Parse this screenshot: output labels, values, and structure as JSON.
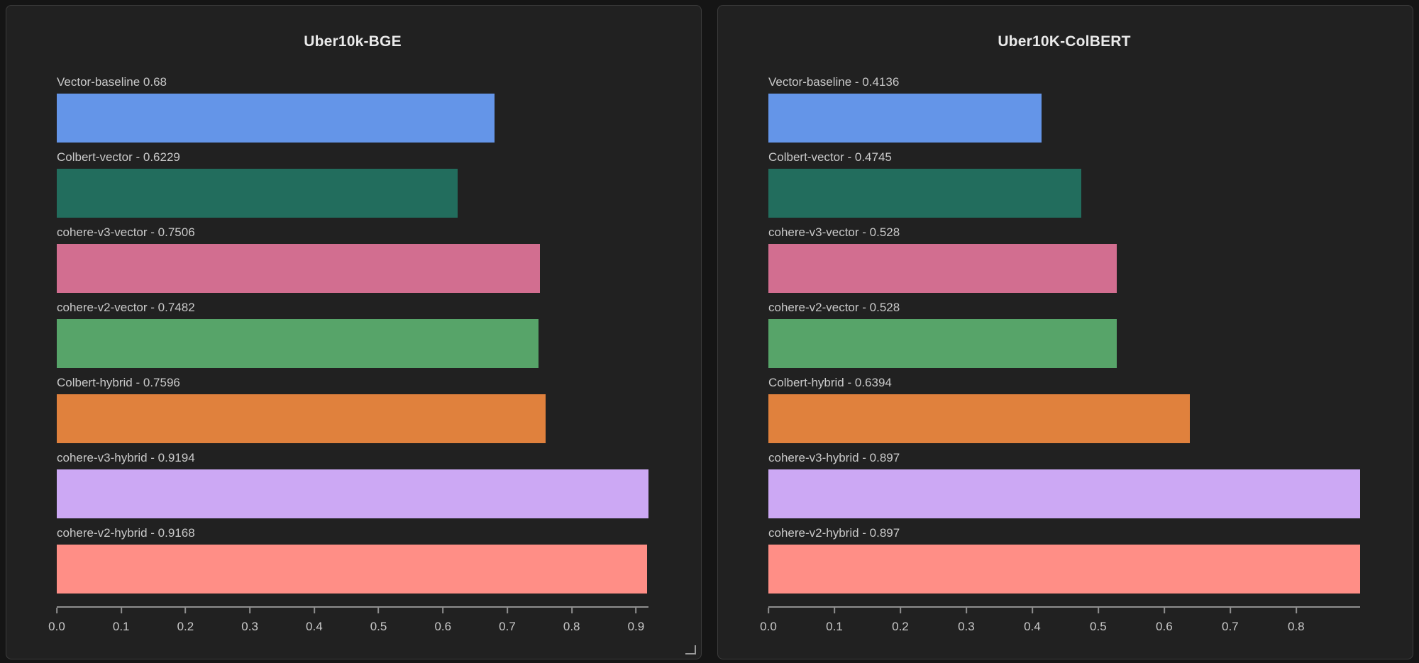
{
  "app": {
    "background": "#151515",
    "panel_background": "#212121",
    "panel_border": "#3c3c3c",
    "axis_color": "#8f8f8f",
    "label_color": "#c9c9c9",
    "title_color": "#eaeaea"
  },
  "chart_data": [
    {
      "type": "bar",
      "orientation": "horizontal",
      "title": "Uber10k-BGE",
      "categories": [
        "Vector-baseline",
        "Colbert-vector",
        "cohere-v3-vector",
        "cohere-v2-vector",
        "Colbert-hybrid",
        "cohere-v3-hybrid",
        "cohere-v2-hybrid"
      ],
      "values": [
        0.68,
        0.6229,
        0.7506,
        0.7482,
        0.7596,
        0.9194,
        0.9168
      ],
      "bar_labels": [
        "Vector-baseline 0.68",
        "Colbert-vector - 0.6229",
        "cohere-v3-vector - 0.7506",
        "cohere-v2-vector - 0.7482",
        "Colbert-hybrid - 0.7596",
        "cohere-v3-hybrid - 0.9194",
        "cohere-v2-hybrid - 0.9168"
      ],
      "bar_colors": [
        "#6495e8",
        "#226d5d",
        "#d26e90",
        "#57a469",
        "#e0813d",
        "#cca8f4",
        "#ff8e86"
      ],
      "xlabel": "",
      "ylabel": "",
      "xlim": [
        0,
        0.9194
      ],
      "x_ticks": [
        0,
        0.1,
        0.2,
        0.3,
        0.4,
        0.5,
        0.6,
        0.7,
        0.8,
        0.9
      ],
      "x_tick_labels": [
        "0.0",
        "0.1",
        "0.2",
        "0.3",
        "0.4",
        "0.5",
        "0.6",
        "0.7",
        "0.8",
        "0.9"
      ],
      "grid": false,
      "legend": false,
      "has_resize_handle": true
    },
    {
      "type": "bar",
      "orientation": "horizontal",
      "title": "Uber10K-ColBERT",
      "categories": [
        "Vector-baseline",
        "Colbert-vector",
        "cohere-v3-vector",
        "cohere-v2-vector",
        "Colbert-hybrid",
        "cohere-v3-hybrid",
        "cohere-v2-hybrid"
      ],
      "values": [
        0.4136,
        0.4745,
        0.528,
        0.528,
        0.6394,
        0.897,
        0.897
      ],
      "bar_labels": [
        "Vector-baseline - 0.4136",
        "Colbert-vector - 0.4745",
        "cohere-v3-vector - 0.528",
        "cohere-v2-vector - 0.528",
        "Colbert-hybrid - 0.6394",
        "cohere-v3-hybrid - 0.897",
        "cohere-v2-hybrid - 0.897"
      ],
      "bar_colors": [
        "#6495e8",
        "#226d5d",
        "#d26e90",
        "#57a469",
        "#e0813d",
        "#cca8f4",
        "#ff8e86"
      ],
      "xlabel": "",
      "ylabel": "",
      "xlim": [
        0,
        0.897
      ],
      "x_ticks": [
        0,
        0.1,
        0.2,
        0.3,
        0.4,
        0.5,
        0.6,
        0.7,
        0.8
      ],
      "x_tick_labels": [
        "0.0",
        "0.1",
        "0.2",
        "0.3",
        "0.4",
        "0.5",
        "0.6",
        "0.7",
        "0.8"
      ],
      "grid": false,
      "legend": false,
      "has_resize_handle": false
    }
  ]
}
